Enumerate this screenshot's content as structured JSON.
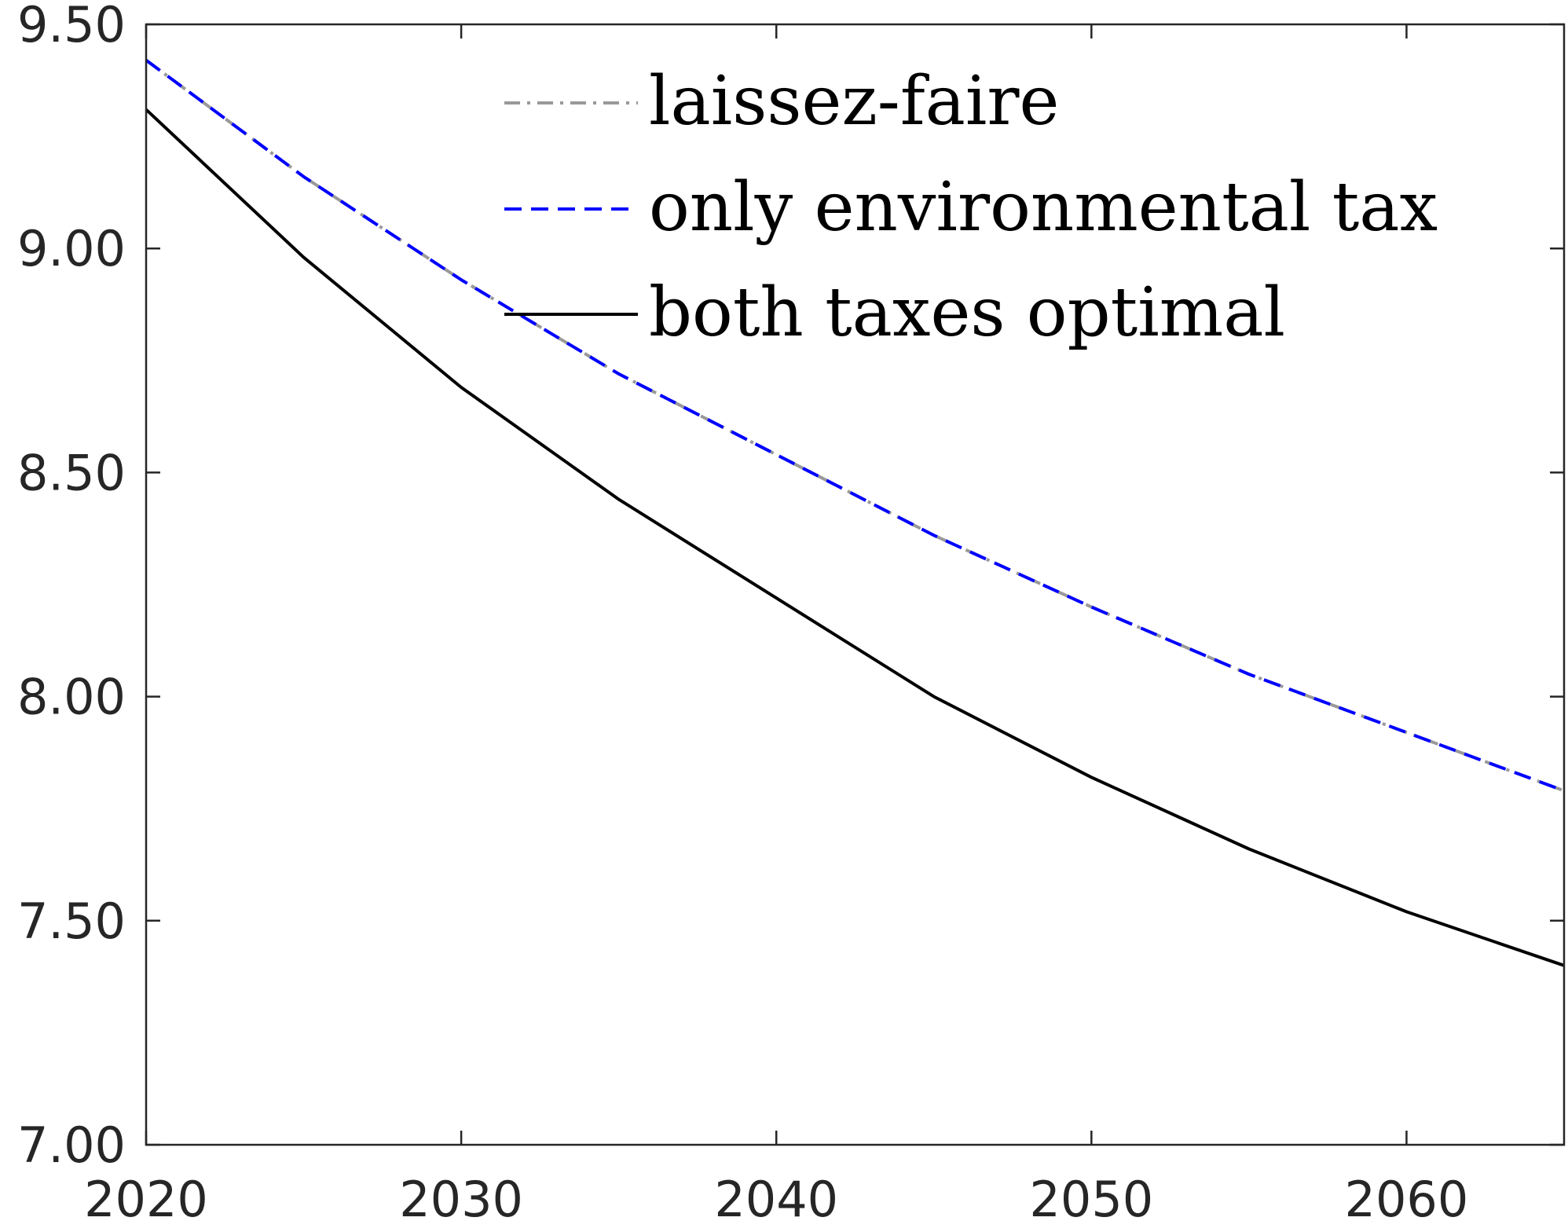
{
  "chart_data": {
    "type": "line",
    "title": "",
    "xlabel": "",
    "ylabel": "",
    "xlim": [
      2020,
      2065
    ],
    "ylim": [
      7.0,
      9.5
    ],
    "xticks": [
      2020,
      2030,
      2040,
      2050,
      2060
    ],
    "xtick_labels": [
      "2020",
      "2030",
      "2040",
      "2050",
      "2060"
    ],
    "yticks": [
      7.0,
      7.5,
      8.0,
      8.5,
      9.0,
      9.5
    ],
    "ytick_labels": [
      "7.00",
      "7.50",
      "8.00",
      "8.50",
      "9.00",
      "9.50"
    ],
    "grid": false,
    "legend_position": "top-right",
    "x": [
      2020,
      2025,
      2030,
      2035,
      2040,
      2045,
      2050,
      2055,
      2060,
      2065
    ],
    "series": [
      {
        "name": "laissez-faire",
        "color": "#999999",
        "style": "dash-dot",
        "values": [
          9.42,
          9.16,
          8.93,
          8.72,
          8.54,
          8.36,
          8.2,
          8.05,
          7.92,
          7.79
        ]
      },
      {
        "name": "only environmental tax",
        "color": "#0000ff",
        "style": "dashed",
        "values": [
          9.42,
          9.16,
          8.93,
          8.72,
          8.54,
          8.36,
          8.2,
          8.05,
          7.92,
          7.79
        ]
      },
      {
        "name": "both taxes optimal",
        "color": "#000000",
        "style": "solid",
        "values": [
          9.31,
          8.98,
          8.69,
          8.44,
          8.22,
          8.0,
          7.82,
          7.66,
          7.52,
          7.4
        ]
      }
    ]
  }
}
